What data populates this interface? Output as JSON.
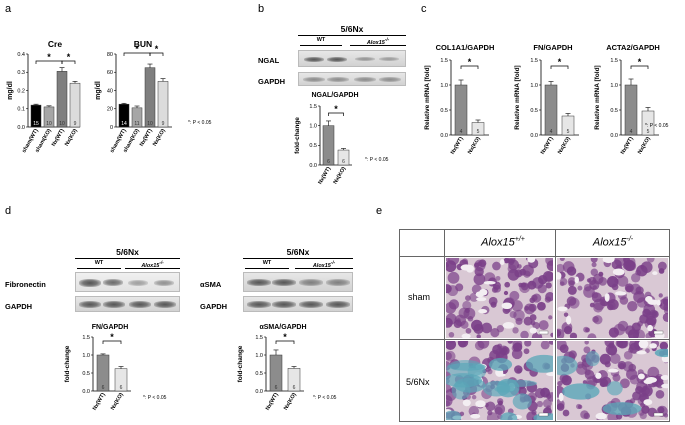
{
  "panels": {
    "a": "a",
    "b": "b",
    "c": "c",
    "d": "d",
    "e": "e"
  },
  "p_note": "*: P < 0.05",
  "star": "*",
  "panel_a": {
    "ylabel": "mg/dl",
    "charts": [
      {
        "title": "Cre",
        "categories": [
          "sham(WT)",
          "sham(KO)",
          "Nx(WT)",
          "Nx(KO)"
        ],
        "values": [
          0.12,
          0.11,
          0.305,
          0.24
        ],
        "errors": [
          0.005,
          0.006,
          0.02,
          0.01
        ],
        "n": [
          "15",
          "10",
          "10",
          "9"
        ],
        "ylim": [
          0,
          0.4
        ],
        "ticks": [
          "0.0",
          "0.1",
          "0.2",
          "0.3",
          "0.4"
        ],
        "colors": [
          "#000000",
          "#a6a6a6",
          "#7f7f7f",
          "#dcdcdc"
        ]
      },
      {
        "title": "BUN",
        "categories": [
          "sham(WT)",
          "sham(KO)",
          "Nx(WT)",
          "Nx(KO)"
        ],
        "values": [
          25,
          21,
          65,
          50
        ],
        "errors": [
          1,
          2,
          4,
          3
        ],
        "n": [
          "14",
          "11",
          "10",
          "9"
        ],
        "ylim": [
          0,
          80
        ],
        "ticks": [
          "0",
          "20",
          "40",
          "60",
          "80"
        ],
        "colors": [
          "#000000",
          "#a6a6a6",
          "#7f7f7f",
          "#dcdcdc"
        ]
      }
    ]
  },
  "panel_b": {
    "header": "5/6Nx",
    "wt": "WT",
    "ko": "Alox15",
    "ko_sup": "-/-",
    "blots": [
      "NGAL",
      "GAPDH"
    ],
    "chart": {
      "title": "NGAL/GAPDH",
      "ylabel": "fold-change",
      "categories": [
        "Nx(WT)",
        "Nx(KO)"
      ],
      "values": [
        1.0,
        0.38
      ],
      "errors": [
        0.12,
        0.04
      ],
      "n": [
        "6",
        "6"
      ],
      "ylim": [
        0,
        1.5
      ],
      "ticks": [
        "0.0",
        "0.5",
        "1.0",
        "1.5"
      ]
    }
  },
  "panel_c": {
    "ylabel": "Relative mRNA [fold]",
    "charts": [
      {
        "title": "COL1A1/GAPDH",
        "categories": [
          "Nx(WT)",
          "Nx(KO)"
        ],
        "values": [
          1.0,
          0.25
        ],
        "errors": [
          0.1,
          0.05
        ],
        "n": [
          "4",
          "5"
        ]
      },
      {
        "title": "FN/GAPDH",
        "categories": [
          "Nx(WT)",
          "Nx(KO)"
        ],
        "values": [
          1.0,
          0.38
        ],
        "errors": [
          0.07,
          0.05
        ],
        "n": [
          "4",
          "5"
        ]
      },
      {
        "title": "ACTA2/GAPDH",
        "categories": [
          "Nx(WT)",
          "Nx(KO)"
        ],
        "values": [
          1.0,
          0.48
        ],
        "errors": [
          0.12,
          0.07
        ],
        "n": [
          "4",
          "5"
        ]
      }
    ],
    "ylim": [
      0,
      1.5
    ],
    "ticks": [
      "0.0",
      "0.5",
      "1.0",
      "1.5"
    ]
  },
  "panel_d": {
    "left": {
      "header": "5/6Nx",
      "wt": "WT",
      "ko": "Alox15",
      "ko_sup": "-/-",
      "blots": [
        "Fibronectin",
        "GAPDH"
      ],
      "chart": {
        "title": "FN/GAPDH",
        "ylabel": "fold-change",
        "categories": [
          "Nx(WT)",
          "Nx(KO)"
        ],
        "values": [
          1.0,
          0.62
        ],
        "errors": [
          0.03,
          0.06
        ],
        "n": [
          "6",
          "6"
        ],
        "ylim": [
          0,
          1.5
        ],
        "ticks": [
          "0.0",
          "0.5",
          "1.0",
          "1.5"
        ]
      }
    },
    "right": {
      "header": "5/6Nx",
      "wt": "WT",
      "ko": "Alox15",
      "ko_sup": "-/-",
      "blots": [
        "αSMA",
        "GAPDH"
      ],
      "chart": {
        "title": "αSMA/GAPDH",
        "ylabel": "fold-change",
        "categories": [
          "Nx(WT)",
          "Nx(KO)"
        ],
        "values": [
          1.0,
          0.63
        ],
        "errors": [
          0.14,
          0.05
        ],
        "n": [
          "6",
          "6"
        ],
        "ylim": [
          0,
          1.5
        ],
        "ticks": [
          "0.0",
          "0.5",
          "1.0",
          "1.5"
        ]
      }
    }
  },
  "panel_e": {
    "col_wt": "Alox15",
    "col_wt_sup": "+/+",
    "col_ko": "Alox15",
    "col_ko_sup": "-/-",
    "rows": [
      "sham",
      "5/6Nx"
    ],
    "colors": {
      "stroma": "#d9c8d4",
      "tissue": "#7a3f88",
      "fibrosis": "#5aa7b8",
      "lumen": "#f3eef2"
    }
  },
  "chart_data": [
    {
      "type": "bar",
      "title": "Cre",
      "ylabel": "mg/dl",
      "categories": [
        "sham(WT)",
        "sham(KO)",
        "Nx(WT)",
        "Nx(KO)"
      ],
      "values": [
        0.12,
        0.11,
        0.305,
        0.24
      ],
      "ylim": [
        0,
        0.4
      ]
    },
    {
      "type": "bar",
      "title": "BUN",
      "ylabel": "mg/dl",
      "categories": [
        "sham(WT)",
        "sham(KO)",
        "Nx(WT)",
        "Nx(KO)"
      ],
      "values": [
        25,
        21,
        65,
        50
      ],
      "ylim": [
        0,
        80
      ]
    },
    {
      "type": "bar",
      "title": "NGAL/GAPDH",
      "ylabel": "fold-change",
      "categories": [
        "Nx(WT)",
        "Nx(KO)"
      ],
      "values": [
        1.0,
        0.38
      ],
      "ylim": [
        0,
        1.5
      ]
    },
    {
      "type": "bar",
      "title": "COL1A1/GAPDH",
      "ylabel": "Relative mRNA [fold]",
      "categories": [
        "Nx(WT)",
        "Nx(KO)"
      ],
      "values": [
        1.0,
        0.25
      ],
      "ylim": [
        0,
        1.5
      ]
    },
    {
      "type": "bar",
      "title": "FN/GAPDH",
      "ylabel": "Relative mRNA [fold]",
      "categories": [
        "Nx(WT)",
        "Nx(KO)"
      ],
      "values": [
        1.0,
        0.38
      ],
      "ylim": [
        0,
        1.5
      ]
    },
    {
      "type": "bar",
      "title": "ACTA2/GAPDH",
      "ylabel": "Relative mRNA [fold]",
      "categories": [
        "Nx(WT)",
        "Nx(KO)"
      ],
      "values": [
        1.0,
        0.48
      ],
      "ylim": [
        0,
        1.5
      ]
    },
    {
      "type": "bar",
      "title": "FN/GAPDH",
      "ylabel": "fold-change",
      "categories": [
        "Nx(WT)",
        "Nx(KO)"
      ],
      "values": [
        1.0,
        0.62
      ],
      "ylim": [
        0,
        1.5
      ]
    },
    {
      "type": "bar",
      "title": "αSMA/GAPDH",
      "ylabel": "fold-change",
      "categories": [
        "Nx(WT)",
        "Nx(KO)"
      ],
      "values": [
        1.0,
        0.63
      ],
      "ylim": [
        0,
        1.5
      ]
    }
  ]
}
